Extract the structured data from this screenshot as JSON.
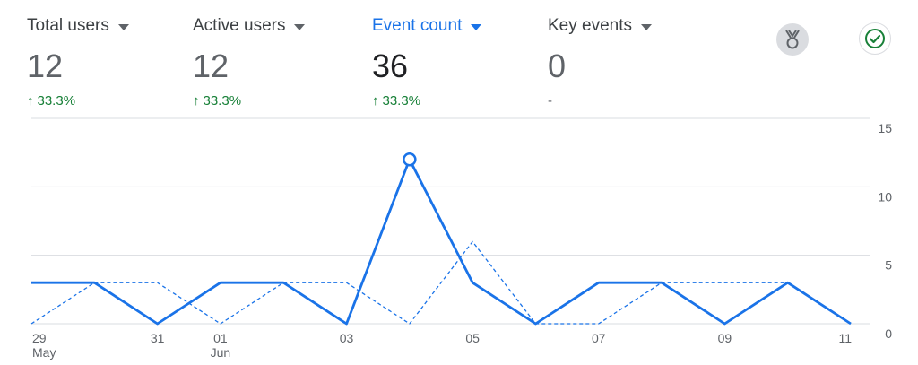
{
  "metrics": [
    {
      "title": "Total users",
      "value": "12",
      "change": "33.3%",
      "selected": false
    },
    {
      "title": "Active users",
      "value": "12",
      "change": "33.3%",
      "selected": false
    },
    {
      "title": "Event count",
      "value": "36",
      "change": "33.3%",
      "selected": true
    },
    {
      "title": "Key events",
      "value": "0",
      "change": "-",
      "selected": false
    }
  ],
  "icons": {
    "insights_badge": "award-ribbon-icon",
    "status": "check-circle-icon"
  },
  "colors": {
    "accent": "#1a73e8",
    "positive": "#188038",
    "line": "#1a73e8",
    "grid": "#dadce0"
  },
  "chart_data": {
    "type": "line",
    "x": [
      "29 May",
      "30 May",
      "31 May",
      "01 Jun",
      "02 Jun",
      "03 Jun",
      "04 Jun",
      "05 Jun",
      "06 Jun",
      "07 Jun",
      "08 Jun",
      "09 Jun",
      "10 Jun",
      "11 Jun"
    ],
    "x_tick_labels": [
      {
        "label": "29",
        "sublabel": "May"
      },
      {
        "label": "31",
        "sublabel": ""
      },
      {
        "label": "01",
        "sublabel": "Jun"
      },
      {
        "label": "03",
        "sublabel": ""
      },
      {
        "label": "05",
        "sublabel": ""
      },
      {
        "label": "07",
        "sublabel": ""
      },
      {
        "label": "09",
        "sublabel": ""
      },
      {
        "label": "11",
        "sublabel": ""
      }
    ],
    "x_tick_indices": [
      0,
      2,
      3,
      5,
      7,
      9,
      11,
      13
    ],
    "y_ticks": [
      "0",
      "5",
      "10",
      "15"
    ],
    "ylim": [
      0,
      15
    ],
    "series": [
      {
        "style": "solid",
        "values": [
          3,
          3,
          0,
          3,
          3,
          0,
          12,
          3,
          0,
          3,
          3,
          0,
          3,
          0
        ]
      },
      {
        "style": "dashed",
        "values": [
          0,
          3,
          3,
          0,
          3,
          3,
          0,
          6,
          0,
          0,
          3,
          3,
          3,
          null
        ]
      }
    ],
    "highlight_index": 6,
    "grid": true
  }
}
